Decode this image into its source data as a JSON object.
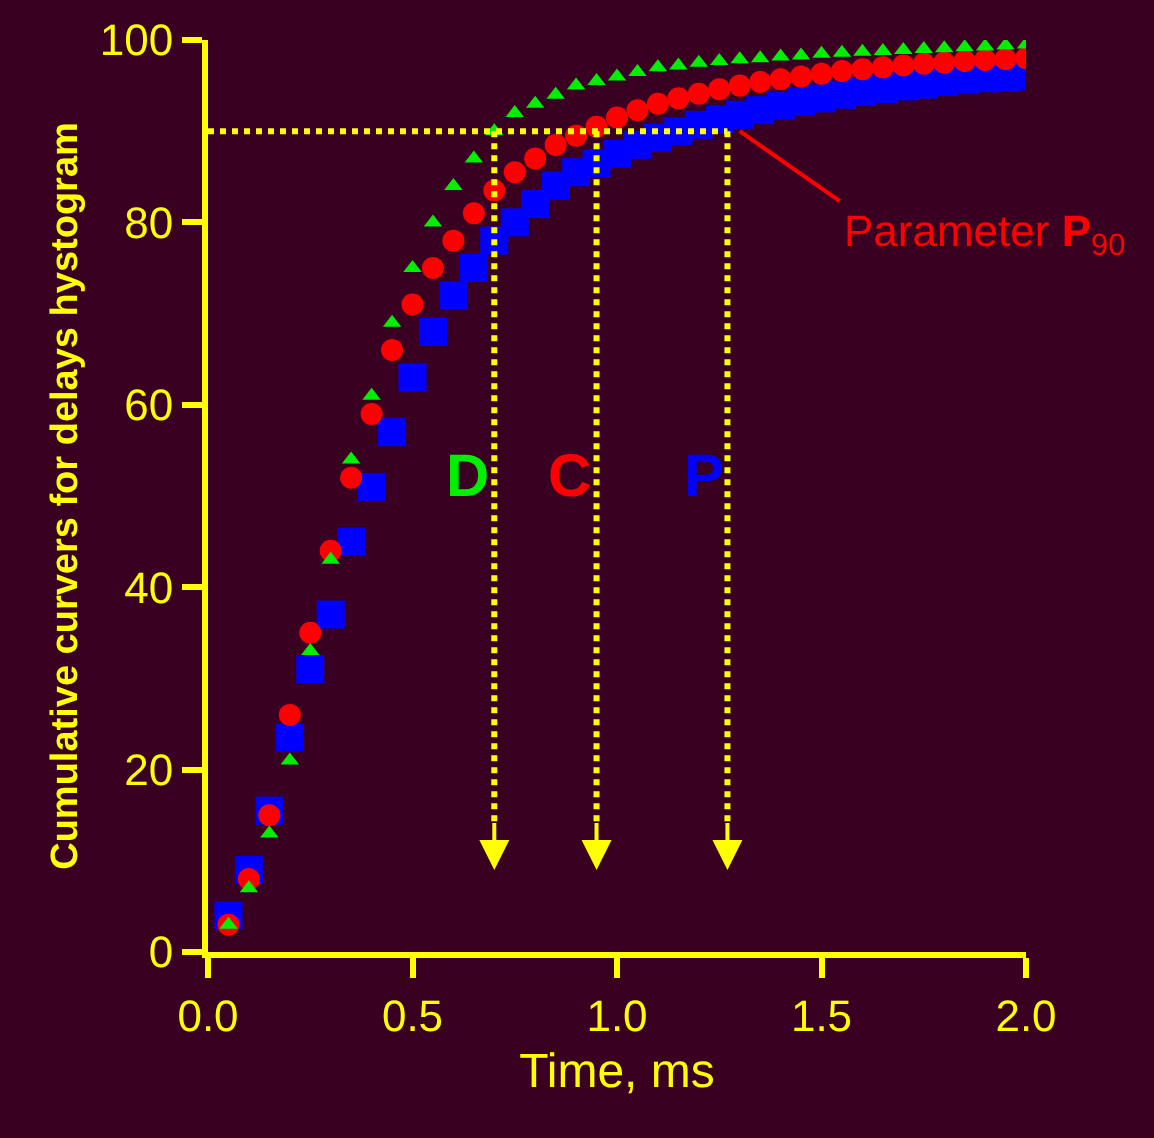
{
  "chart_data": {
    "type": "scatter",
    "xlabel": "Time, ms",
    "ylabel": "Cumulative curvers for delays hystogram",
    "x": [
      0.05,
      0.1,
      0.15,
      0.2,
      0.25,
      0.3,
      0.35,
      0.4,
      0.45,
      0.5,
      0.55,
      0.6,
      0.65,
      0.7,
      0.75,
      0.8,
      0.85,
      0.9,
      0.95,
      1.0,
      1.05,
      1.1,
      1.15,
      1.2,
      1.25,
      1.3,
      1.35,
      1.4,
      1.45,
      1.5,
      1.55,
      1.6,
      1.65,
      1.7,
      1.75,
      1.8,
      1.85,
      1.9,
      1.95,
      2.0
    ],
    "series": [
      {
        "color": "#00ee00",
        "marker": "triangle",
        "values": [
          3,
          7,
          13,
          21,
          33,
          43,
          54,
          61,
          69,
          75,
          80,
          84,
          87,
          90,
          92,
          93,
          94,
          95,
          95.5,
          96,
          96.5,
          97,
          97.2,
          97.5,
          97.7,
          97.9,
          98,
          98.2,
          98.3,
          98.5,
          98.6,
          98.7,
          98.8,
          98.9,
          99,
          99.1,
          99.2,
          99.3,
          99.4,
          99.5
        ]
      },
      {
        "color": "#ff0000",
        "marker": "circle",
        "values": [
          3,
          8,
          15,
          26,
          35,
          44,
          52,
          59,
          66,
          71,
          75,
          78,
          81,
          83.5,
          85.5,
          87,
          88.5,
          89.5,
          90.5,
          91.5,
          92.3,
          93,
          93.6,
          94.1,
          94.6,
          95,
          95.4,
          95.7,
          96,
          96.3,
          96.6,
          96.8,
          97,
          97.2,
          97.4,
          97.5,
          97.7,
          97.8,
          97.9,
          98
        ]
      },
      {
        "color": "#0000ff",
        "marker": "square",
        "values": [
          4,
          9,
          15.5,
          23.5,
          31,
          37,
          45,
          51,
          57,
          63,
          68,
          72,
          75,
          78,
          80,
          82,
          84,
          85.5,
          86.5,
          87.5,
          88.5,
          89.3,
          90,
          90.7,
          91.3,
          91.8,
          92.3,
          92.8,
          93.2,
          93.6,
          94,
          94.3,
          94.6,
          94.9,
          95.1,
          95.4,
          95.6,
          95.8,
          95.9,
          96
        ]
      }
    ],
    "xlim": [
      0,
      2
    ],
    "xticks": [
      {
        "value": 0,
        "label": "0.0"
      },
      {
        "value": 0.5,
        "label": "0.5"
      },
      {
        "value": 1,
        "label": "1.0"
      },
      {
        "value": 1.5,
        "label": "1.5"
      },
      {
        "value": 2,
        "label": "2.0"
      }
    ],
    "ylim": [
      0,
      100
    ],
    "yticks": [
      0,
      20,
      40,
      60,
      80,
      100
    ],
    "ref_lines": [
      {
        "axis": "y",
        "value": 90,
        "color": "#ffff00",
        "line_style": "dotted"
      },
      {
        "axis": "x",
        "value": 0.7,
        "label": "D",
        "color": "#ffff00",
        "line_style": "dotted"
      },
      {
        "axis": "x",
        "value": 0.95,
        "label": "C",
        "color": "#ffff00",
        "line_style": "dotted"
      },
      {
        "axis": "x",
        "value": 1.27,
        "label": "P",
        "color": "#ffff00",
        "line_style": "dotted"
      }
    ],
    "annotations": [
      {
        "text": "Parameter P$_{90}$",
        "x": 1.3,
        "y": 90
      }
    ],
    "grid": false
  }
}
